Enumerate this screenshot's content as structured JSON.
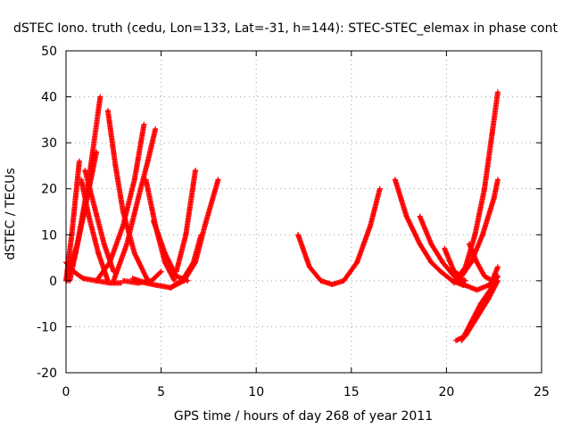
{
  "chart_data": {
    "type": "scatter",
    "title": "dSTEC Iono. truth (cedu, Lon=133, Lat=-31, h=144): STEC-STEC_elemax in phase cont",
    "xlabel": "GPS time / hours of day 268 of year 2011",
    "ylabel": "dSTEC  / TECUs",
    "xlim": [
      0,
      25
    ],
    "ylim": [
      -20,
      50
    ],
    "x_ticks": [
      "0",
      "5",
      "10",
      "15",
      "20",
      "25"
    ],
    "y_ticks": [
      "-20",
      "-10",
      "0",
      "10",
      "20",
      "30",
      "40",
      "50"
    ],
    "x_tick_values": [
      0,
      5,
      10,
      15,
      20,
      25
    ],
    "y_tick_values": [
      -20,
      -10,
      0,
      10,
      20,
      30,
      40,
      50
    ],
    "grid": true,
    "marker": "+",
    "color": "#ff0000",
    "series": [
      {
        "x": [
          0.0,
          0.6,
          1.2,
          1.8
        ],
        "y": [
          0,
          8,
          22,
          40
        ]
      },
      {
        "x": [
          0.0,
          0.3,
          0.5,
          0.7
        ],
        "y": [
          0,
          10,
          18,
          26
        ]
      },
      {
        "x": [
          0.1,
          0.5,
          0.9,
          1.4
        ],
        "y": [
          0,
          6,
          14,
          24
        ]
      },
      {
        "x": [
          0.2,
          0.6,
          1.1,
          1.6
        ],
        "y": [
          0,
          8,
          18,
          28
        ]
      },
      {
        "x": [
          0.0,
          0.4,
          0.9,
          1.6,
          2.3,
          2.9
        ],
        "y": [
          4,
          2,
          0.5,
          0,
          -0.5,
          -0.5
        ]
      },
      {
        "x": [
          0.8,
          1.2,
          1.7,
          2.2
        ],
        "y": [
          22,
          14,
          6,
          0
        ]
      },
      {
        "x": [
          1.0,
          1.5,
          2.0,
          2.5
        ],
        "y": [
          24,
          16,
          8,
          2
        ]
      },
      {
        "x": [
          1.6,
          2.3,
          3.0,
          3.6,
          4.1
        ],
        "y": [
          0,
          4,
          12,
          22,
          34
        ]
      },
      {
        "x": [
          2.2,
          2.6,
          3.0,
          3.6,
          4.3
        ],
        "y": [
          37,
          25,
          15,
          6,
          0
        ]
      },
      {
        "x": [
          2.5,
          3.2,
          3.8,
          4.3,
          4.7
        ],
        "y": [
          0,
          8,
          18,
          26,
          33
        ]
      },
      {
        "x": [
          3.0,
          3.8,
          4.5,
          5.0
        ],
        "y": [
          0,
          -0.5,
          0,
          2
        ]
      },
      {
        "x": [
          3.5,
          4.2,
          4.8,
          5.5,
          6.1,
          6.7,
          7.1
        ],
        "y": [
          0.5,
          -0.5,
          -1,
          -1.5,
          0,
          4,
          10
        ]
      },
      {
        "x": [
          4.2,
          4.7,
          5.2,
          5.7
        ],
        "y": [
          22,
          12,
          4,
          0
        ]
      },
      {
        "x": [
          4.6,
          5.2,
          5.8,
          6.4
        ],
        "y": [
          13,
          6,
          1,
          0
        ]
      },
      {
        "x": [
          5.5,
          6.2,
          6.8,
          7.3,
          8.0
        ],
        "y": [
          -1.5,
          0,
          4,
          12,
          22
        ]
      },
      {
        "x": [
          5.8,
          6.3,
          6.8
        ],
        "y": [
          2,
          10,
          24
        ]
      },
      {
        "x": [
          12.2,
          12.8,
          13.4,
          14.0,
          14.6,
          15.3,
          16.0,
          16.5
        ],
        "y": [
          10,
          3,
          0,
          -0.8,
          0,
          4,
          12,
          20
        ]
      },
      {
        "x": [
          17.3,
          17.9,
          18.6,
          19.2,
          19.7,
          20.3,
          20.9
        ],
        "y": [
          22,
          14,
          8,
          4,
          2,
          0,
          -1
        ]
      },
      {
        "x": [
          18.6,
          19.2,
          19.8,
          20.4,
          21.0
        ],
        "y": [
          14,
          8,
          4,
          1,
          0
        ]
      },
      {
        "x": [
          19.9,
          20.4,
          20.8,
          21.3,
          21.9,
          22.5,
          22.7
        ],
        "y": [
          7,
          2,
          1,
          4,
          10,
          18,
          22
        ]
      },
      {
        "x": [
          20.4,
          21.0,
          21.5,
          22.0,
          22.4,
          22.7
        ],
        "y": [
          -0.5,
          3,
          10,
          20,
          32,
          41
        ]
      },
      {
        "x": [
          20.5,
          21.0,
          21.6,
          22.2,
          22.7
        ],
        "y": [
          0,
          -1,
          -2,
          -1,
          1
        ]
      },
      {
        "x": [
          21.2,
          21.6,
          22.0,
          22.4,
          22.7
        ],
        "y": [
          8,
          4,
          1,
          0,
          3
        ]
      },
      {
        "x": [
          20.5,
          21.0,
          21.6,
          22.2,
          22.7
        ],
        "y": [
          -13,
          -12,
          -8,
          -4,
          0
        ]
      },
      {
        "x": [
          20.8,
          21.3,
          21.8,
          22.3,
          22.7
        ],
        "y": [
          -13,
          -9,
          -5,
          -2,
          1
        ]
      }
    ]
  }
}
